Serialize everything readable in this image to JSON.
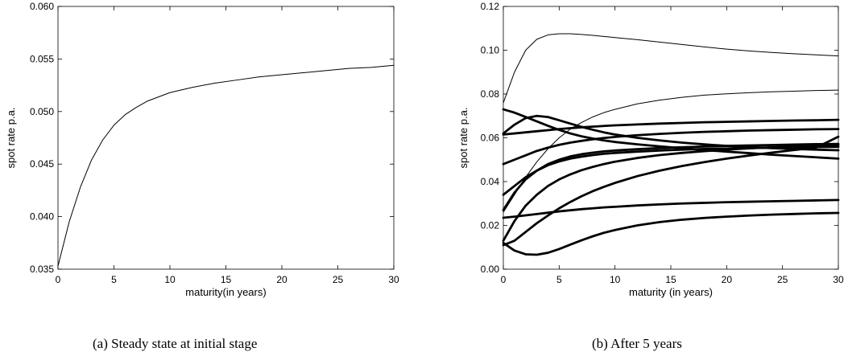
{
  "captions": {
    "left": "(a)  Steady state at initial stage",
    "right": "(b)  After 5 years"
  },
  "chart_data": [
    {
      "type": "line",
      "xlabel": "maturity(in years)",
      "ylabel": "spot rate p.a.",
      "xlim": [
        0,
        30
      ],
      "ylim": [
        0.035,
        0.06
      ],
      "xticks": [
        "0",
        "5",
        "10",
        "15",
        "20",
        "25",
        "30"
      ],
      "yticks": [
        "0.035",
        "0.040",
        "0.045",
        "0.050",
        "0.055",
        "0.060"
      ],
      "x": [
        0,
        1,
        2,
        3,
        4,
        5,
        6,
        7,
        8,
        9,
        10,
        12,
        14,
        16,
        18,
        20,
        22,
        24,
        26,
        28,
        30
      ],
      "series": [
        {
          "width": "thin",
          "values": [
            0.0353,
            0.0395,
            0.0428,
            0.0454,
            0.0473,
            0.0487,
            0.0497,
            0.0504,
            0.051,
            0.0514,
            0.0518,
            0.0523,
            0.0527,
            0.053,
            0.0533,
            0.0535,
            0.0537,
            0.0539,
            0.0541,
            0.0542,
            0.0544
          ]
        }
      ]
    },
    {
      "type": "line",
      "xlabel": "maturity (in years)",
      "ylabel": "spot rate p.a.",
      "xlim": [
        0,
        30
      ],
      "ylim": [
        0,
        0.12
      ],
      "xticks": [
        "0",
        "5",
        "10",
        "15",
        "20",
        "25",
        "30"
      ],
      "yticks": [
        "0.00",
        "0.02",
        "0.04",
        "0.06",
        "0.08",
        "0.10",
        "0.12"
      ],
      "x": [
        0,
        1,
        2,
        3,
        4,
        5,
        6,
        7,
        8,
        9,
        10,
        12,
        14,
        16,
        18,
        20,
        22,
        24,
        26,
        28,
        30
      ],
      "series": [
        {
          "width": "thin",
          "values": [
            0.076,
            0.09,
            0.1,
            0.105,
            0.107,
            0.1075,
            0.1075,
            0.1072,
            0.1068,
            0.1063,
            0.1058,
            0.1048,
            0.1037,
            0.1026,
            0.1015,
            0.1005,
            0.0997,
            0.099,
            0.0984,
            0.0979,
            0.0974
          ]
        },
        {
          "width": "thin",
          "values": [
            0.026,
            0.034,
            0.042,
            0.049,
            0.055,
            0.06,
            0.064,
            0.067,
            0.0695,
            0.0715,
            0.073,
            0.0755,
            0.0772,
            0.0785,
            0.0795,
            0.0801,
            0.0806,
            0.081,
            0.0813,
            0.0816,
            0.0818
          ]
        },
        {
          "width": "thick",
          "values": [
            0.0615,
            0.062,
            0.0625,
            0.063,
            0.0635,
            0.064,
            0.0644,
            0.0648,
            0.0651,
            0.0654,
            0.0657,
            0.0661,
            0.0665,
            0.0668,
            0.0671,
            0.0673,
            0.0675,
            0.0677,
            0.0679,
            0.068,
            0.0682
          ]
        },
        {
          "width": "thick",
          "values": [
            0.048,
            0.05,
            0.052,
            0.054,
            0.0555,
            0.0568,
            0.0578,
            0.0586,
            0.0593,
            0.0599,
            0.0604,
            0.0612,
            0.0618,
            0.0623,
            0.0627,
            0.063,
            0.0633,
            0.0635,
            0.0637,
            0.0639,
            0.064
          ]
        },
        {
          "width": "thick",
          "values": [
            0.073,
            0.0715,
            0.0695,
            0.0675,
            0.0655,
            0.0636,
            0.062,
            0.0607,
            0.0597,
            0.0588,
            0.0581,
            0.057,
            0.0561,
            0.0552,
            0.0544,
            0.0537,
            0.053,
            0.0523,
            0.0517,
            0.0511,
            0.0505
          ]
        },
        {
          "width": "thick",
          "values": [
            0.062,
            0.066,
            0.069,
            0.07,
            0.0695,
            0.068,
            0.0665,
            0.065,
            0.0637,
            0.0625,
            0.0615,
            0.06,
            0.0588,
            0.0578,
            0.057,
            0.0563,
            0.0558,
            0.0553,
            0.0549,
            0.0546,
            0.0543
          ]
        },
        {
          "width": "thick",
          "values": [
            0.034,
            0.038,
            0.042,
            0.045,
            0.0475,
            0.0492,
            0.0505,
            0.0514,
            0.0521,
            0.0527,
            0.0531,
            0.0537,
            0.0542,
            0.0546,
            0.0549,
            0.0551,
            0.0553,
            0.0555,
            0.0557,
            0.0558,
            0.0559
          ]
        },
        {
          "width": "thick",
          "values": [
            0.027,
            0.035,
            0.041,
            0.045,
            0.048,
            0.05,
            0.0515,
            0.0525,
            0.0532,
            0.0538,
            0.0542,
            0.0548,
            0.0553,
            0.0557,
            0.056,
            0.0563,
            0.0565,
            0.0567,
            0.0569,
            0.0571,
            0.0572
          ]
        },
        {
          "width": "thick",
          "values": [
            0.013,
            0.022,
            0.029,
            0.034,
            0.038,
            0.041,
            0.0433,
            0.0452,
            0.0467,
            0.048,
            0.0491,
            0.0508,
            0.0521,
            0.0531,
            0.0539,
            0.0546,
            0.0552,
            0.0557,
            0.0561,
            0.0564,
            0.0567
          ]
        },
        {
          "width": "thick",
          "values": [
            0.011,
            0.013,
            0.017,
            0.021,
            0.0245,
            0.0278,
            0.0307,
            0.0333,
            0.0356,
            0.0376,
            0.0394,
            0.0425,
            0.045,
            0.0471,
            0.0489,
            0.0505,
            0.0519,
            0.0532,
            0.0544,
            0.0555,
            0.0605
          ]
        },
        {
          "width": "thick",
          "values": [
            0.0235,
            0.024,
            0.0246,
            0.0252,
            0.0258,
            0.0264,
            0.0269,
            0.0274,
            0.0278,
            0.0282,
            0.0285,
            0.0291,
            0.0296,
            0.03,
            0.0303,
            0.0306,
            0.0308,
            0.031,
            0.0312,
            0.0314,
            0.0316
          ]
        },
        {
          "width": "thick",
          "values": [
            0.012,
            0.0085,
            0.0068,
            0.0066,
            0.0075,
            0.0092,
            0.0112,
            0.0132,
            0.015,
            0.0166,
            0.0179,
            0.02,
            0.0215,
            0.0226,
            0.0234,
            0.024,
            0.0245,
            0.0249,
            0.0252,
            0.0255,
            0.0257
          ]
        }
      ]
    }
  ]
}
